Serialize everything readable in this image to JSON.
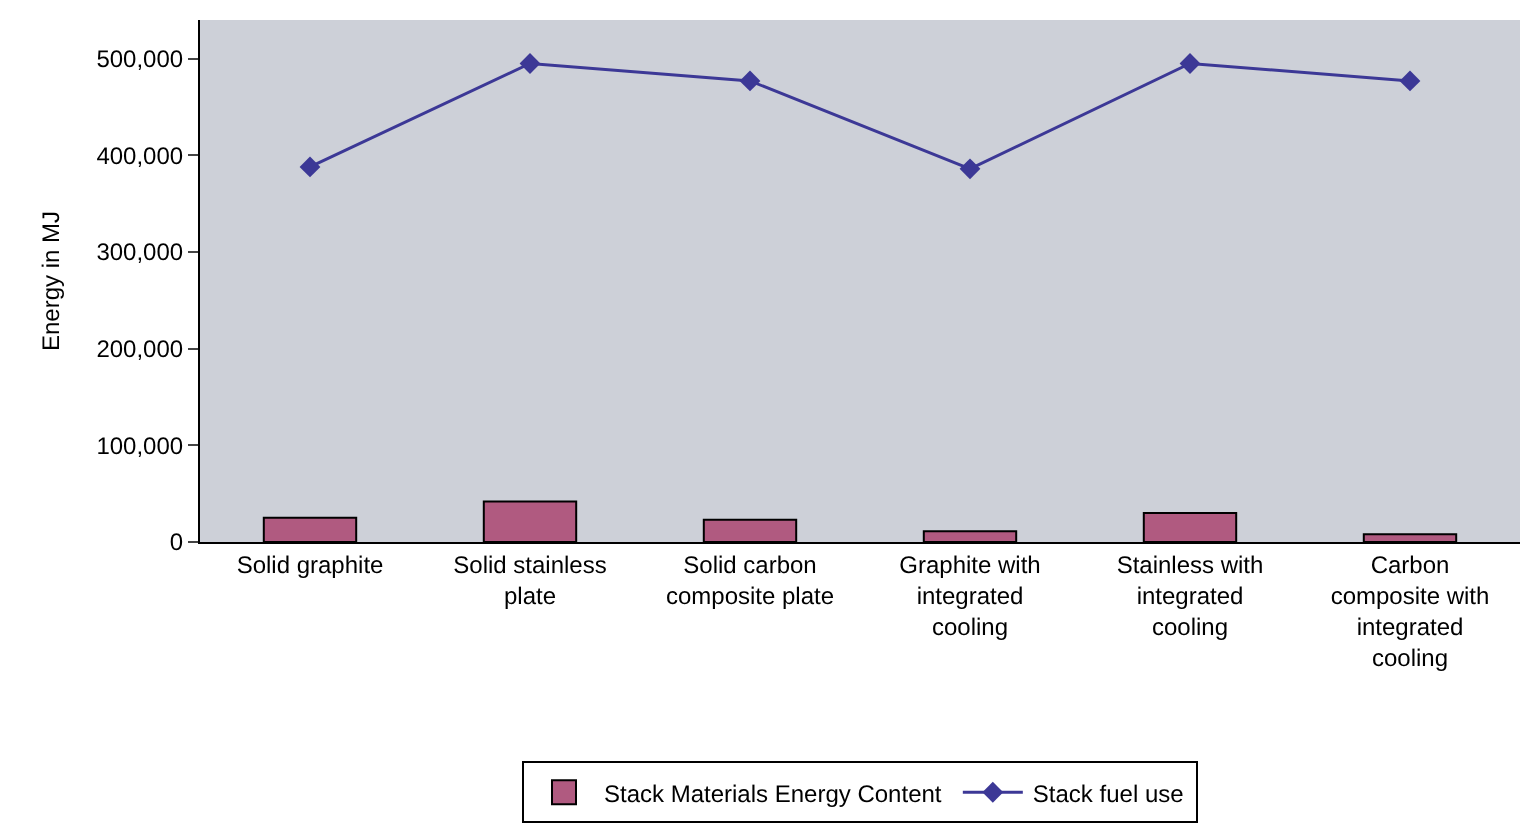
{
  "chart_data": {
    "type": "bar",
    "ylabel": "Energy in MJ",
    "categories": [
      "Solid graphite",
      "Solid stainless plate",
      "Solid carbon composite plate",
      "Graphite with integrated cooling",
      "Stainless with integrated cooling",
      "Carbon composite with integrated cooling"
    ],
    "series": [
      {
        "name": "Stack Materials Energy Content",
        "color": "#b05a80",
        "values": [
          25000,
          42000,
          23000,
          11000,
          30000,
          8000
        ]
      },
      {
        "name": "Stack fuel use",
        "type": "line",
        "color": "#3c3896",
        "marker": "diamond",
        "values": [
          388000,
          495000,
          477000,
          386000,
          495000,
          477000
        ]
      }
    ],
    "ylim": [
      0,
      540000
    ],
    "yticks": [
      {
        "value": 0,
        "label": "0"
      },
      {
        "value": 100000,
        "label": "100,000"
      },
      {
        "value": 200000,
        "label": "200,000"
      },
      {
        "value": 300000,
        "label": "300,000"
      },
      {
        "value": 400000,
        "label": "400,000"
      },
      {
        "value": 500000,
        "label": "500,000"
      }
    ],
    "grid": false,
    "legend": "bottom"
  }
}
